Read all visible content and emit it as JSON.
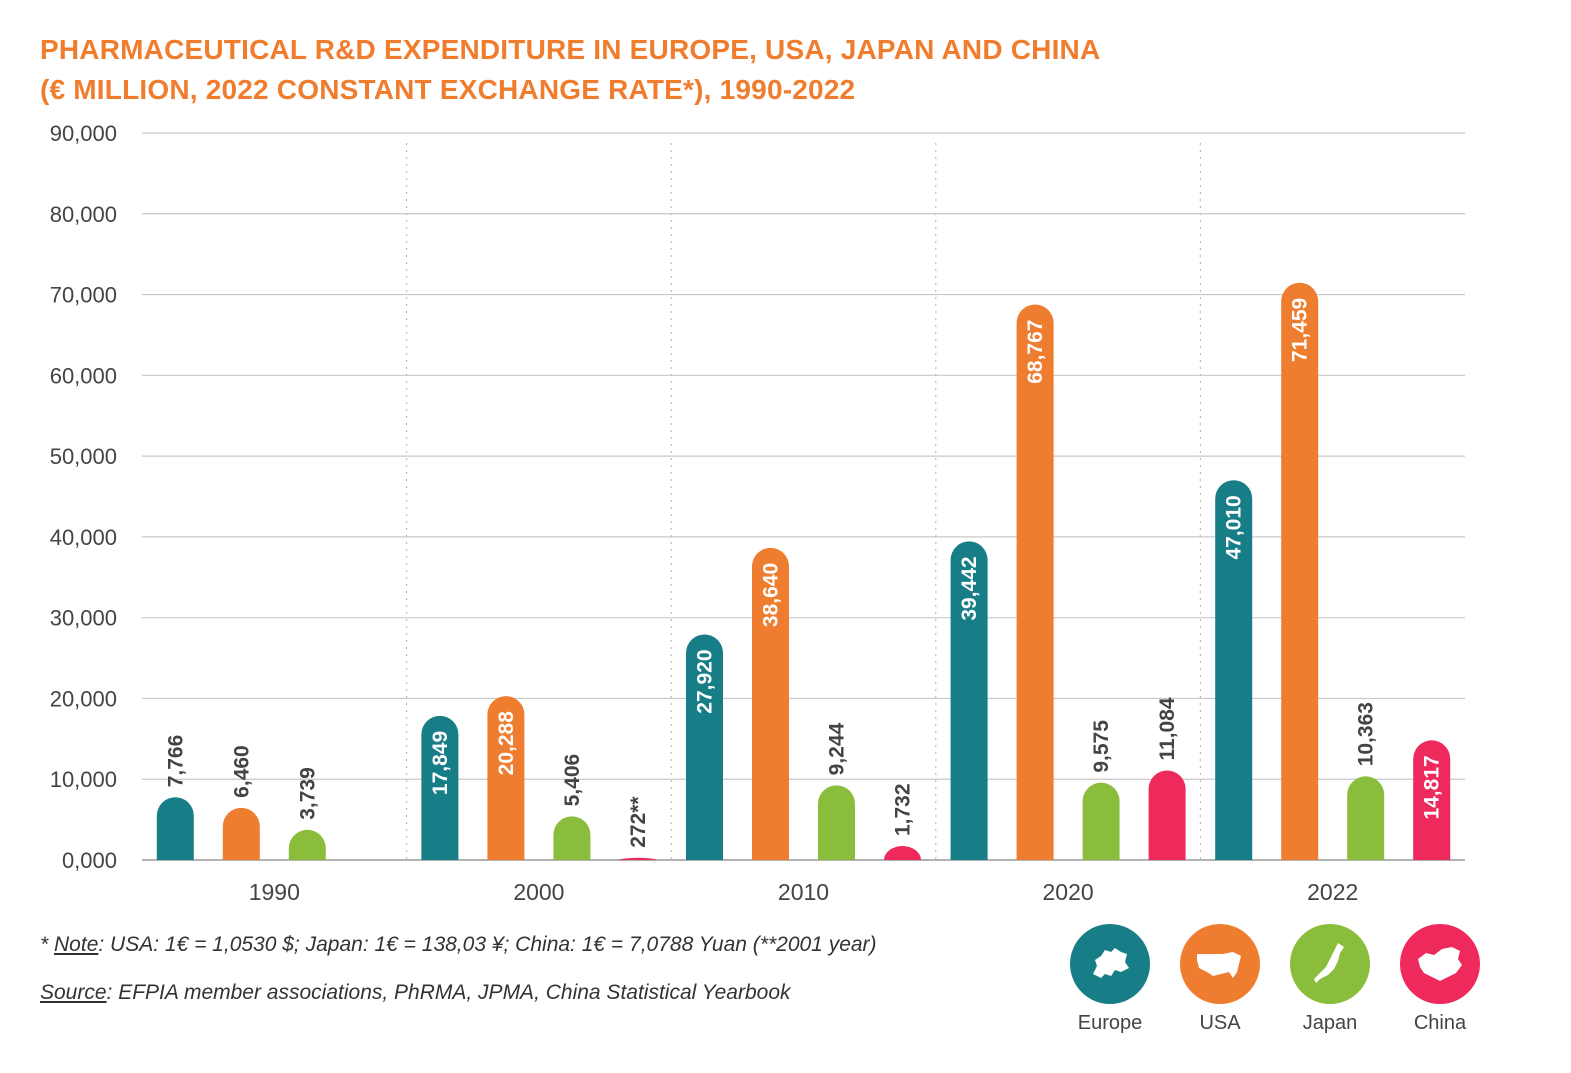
{
  "title": {
    "line1": "PHARMACEUTICAL R&D EXPENDITURE IN EUROPE, USA, JAPAN AND CHINA",
    "line2": "(€ MILLION, 2022 CONSTANT EXCHANGE RATE*), 1990-2022"
  },
  "notes": {
    "note_prefix": "* ",
    "note_label": "Note",
    "note_text": ":  USA: 1€ = 1,0530 $; Japan: 1€ = 138,03 ¥; China: 1€ = 7,0788 Yuan (**2001 year)",
    "source_label": "Source",
    "source_text": ": EFPIA member associations, PhRMA, JPMA, China Statistical Yearbook"
  },
  "legend": [
    {
      "label": "Europe",
      "color": "#177d87",
      "icon": "europe-map-icon"
    },
    {
      "label": "USA",
      "color": "#ef7d30",
      "icon": "usa-map-icon"
    },
    {
      "label": "Japan",
      "color": "#8abd3c",
      "icon": "japan-map-icon"
    },
    {
      "label": "China",
      "color": "#ed2a5b",
      "icon": "china-map-icon"
    }
  ],
  "chart_data": {
    "type": "bar",
    "title": "PHARMACEUTICAL R&D EXPENDITURE IN EUROPE, USA, JAPAN AND CHINA (€ MILLION, 2022 CONSTANT EXCHANGE RATE*), 1990-2022",
    "categories": [
      "1990",
      "2000",
      "2010",
      "2020",
      "2022"
    ],
    "ylim": [
      0,
      90000
    ],
    "yticks": [
      "0,000",
      "10,000",
      "20,000",
      "30,000",
      "40,000",
      "50,000",
      "60,000",
      "70,000",
      "80,000",
      "90,000"
    ],
    "grid": true,
    "legend_position": "bottom-right",
    "series": [
      {
        "name": "Europe",
        "color": "#177d87",
        "values": [
          7766,
          17849,
          27920,
          39442,
          47010
        ],
        "labels": [
          "7,766",
          "17,849",
          "27,920",
          "39,442",
          "47,010"
        ]
      },
      {
        "name": "USA",
        "color": "#ef7d30",
        "values": [
          6460,
          20288,
          38640,
          68767,
          71459
        ],
        "labels": [
          "6,460",
          "20,288",
          "38,640",
          "68,767",
          "71,459"
        ]
      },
      {
        "name": "Japan",
        "color": "#8abd3c",
        "values": [
          3739,
          5406,
          9244,
          9575,
          10363
        ],
        "labels": [
          "3,739",
          "5,406",
          "9,244",
          "9,575",
          "10,363"
        ]
      },
      {
        "name": "China",
        "color": "#ed2a5b",
        "values": [
          null,
          272,
          1732,
          11084,
          14817
        ],
        "labels": [
          "",
          "272**",
          "1,732",
          "11,084",
          "14,817"
        ]
      }
    ]
  }
}
